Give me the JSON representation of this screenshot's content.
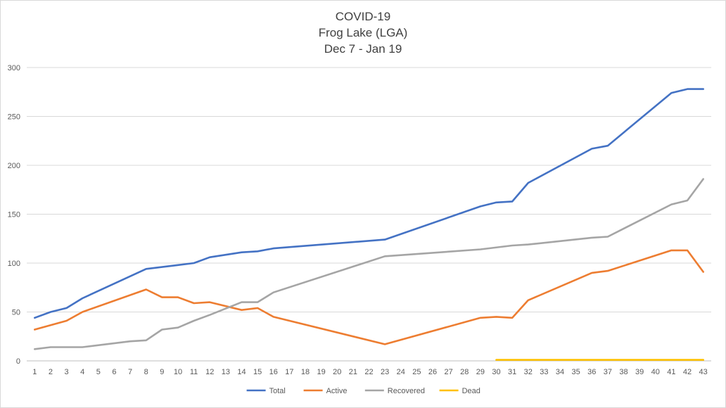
{
  "chart_data": {
    "type": "line",
    "title": [
      "COVID-19",
      "Frog Lake (LGA)",
      "Dec 7 - Jan 19"
    ],
    "xlabel": "",
    "ylabel": "",
    "ylim": [
      0,
      300
    ],
    "yticks": [
      0,
      50,
      100,
      150,
      200,
      250,
      300
    ],
    "grid": true,
    "legend_position": "bottom",
    "categories": [
      1,
      2,
      3,
      4,
      5,
      6,
      7,
      8,
      9,
      10,
      11,
      12,
      13,
      14,
      15,
      16,
      17,
      18,
      19,
      20,
      21,
      22,
      23,
      24,
      25,
      26,
      27,
      28,
      29,
      30,
      31,
      32,
      33,
      34,
      35,
      36,
      37,
      38,
      39,
      40,
      41,
      42,
      43
    ],
    "series": [
      {
        "name": "Total",
        "color": "#4472C4",
        "x": [
          1,
          2,
          3,
          4,
          8,
          9,
          10,
          11,
          12,
          14,
          15,
          16,
          23,
          29,
          30,
          31,
          32,
          36,
          37,
          41,
          42,
          43
        ],
        "values": [
          44,
          50,
          54,
          64,
          94,
          96,
          98,
          100,
          106,
          111,
          112,
          115,
          124,
          158,
          162,
          163,
          182,
          217,
          220,
          274,
          278,
          278
        ]
      },
      {
        "name": "Active",
        "color": "#ED7D31",
        "x": [
          1,
          3,
          4,
          8,
          9,
          10,
          11,
          12,
          14,
          15,
          16,
          23,
          29,
          30,
          31,
          32,
          36,
          37,
          41,
          42,
          43
        ],
        "values": [
          32,
          41,
          50,
          73,
          65,
          65,
          59,
          60,
          52,
          54,
          45,
          17,
          44,
          45,
          44,
          62,
          90,
          92,
          113,
          113,
          91
        ]
      },
      {
        "name": "Recovered",
        "color": "#A5A5A5",
        "x": [
          1,
          2,
          3,
          4,
          7,
          8,
          9,
          10,
          11,
          12,
          14,
          15,
          16,
          23,
          29,
          31,
          32,
          36,
          37,
          41,
          42,
          43
        ],
        "values": [
          12,
          14,
          14,
          14,
          20,
          21,
          32,
          34,
          41,
          47,
          60,
          60,
          70,
          107,
          114,
          118,
          119,
          126,
          127,
          160,
          164,
          186
        ]
      },
      {
        "name": "Dead",
        "color": "#FFC000",
        "x": [
          30,
          43
        ],
        "values": [
          1,
          1
        ]
      }
    ]
  }
}
